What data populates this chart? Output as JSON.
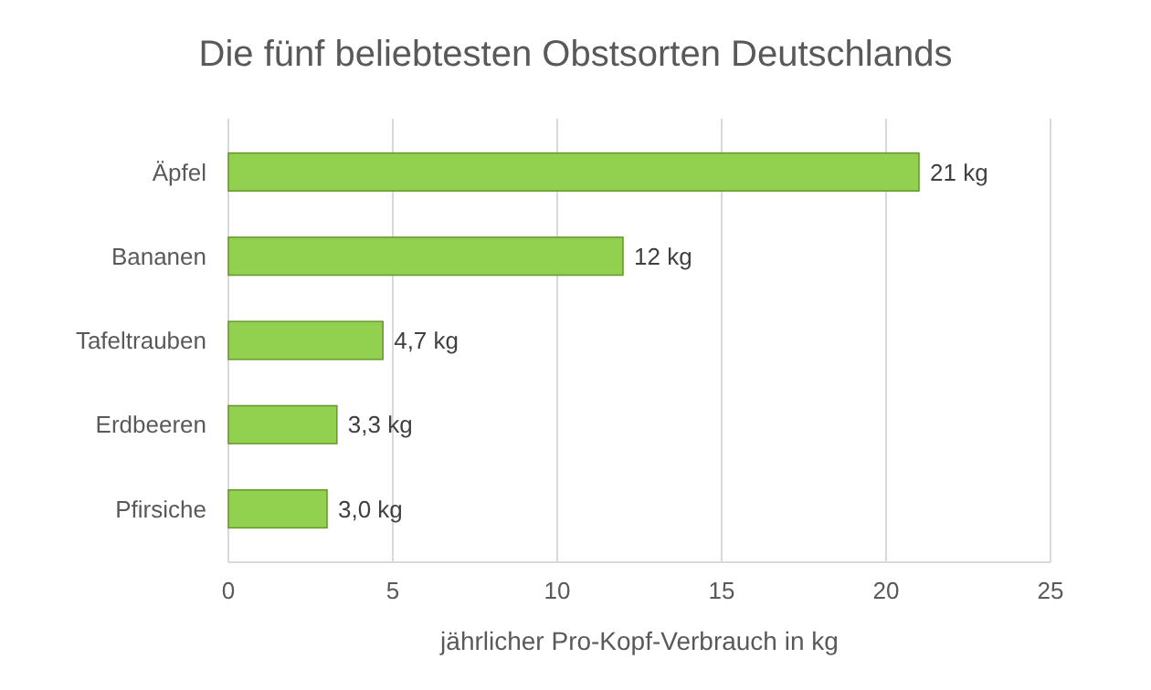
{
  "chart_data": {
    "type": "bar",
    "orientation": "horizontal",
    "title": "Die fünf beliebtesten Obstsorten Deutschlands",
    "xlabel": "jährlicher Pro-Kopf-Verbrauch in kg",
    "categories": [
      "Äpfel",
      "Bananen",
      "Tafeltrauben",
      "Erdbeeren",
      "Pfirsiche"
    ],
    "values": [
      21,
      12,
      4.7,
      3.3,
      3.0
    ],
    "value_labels": [
      "21 kg",
      "12 kg",
      "4,7 kg",
      "3,3 kg",
      "3,0 kg"
    ],
    "color": "#92d050",
    "xlim": [
      0,
      25
    ],
    "xticks": [
      0,
      5,
      10,
      15,
      20,
      25
    ],
    "grid": "x"
  }
}
